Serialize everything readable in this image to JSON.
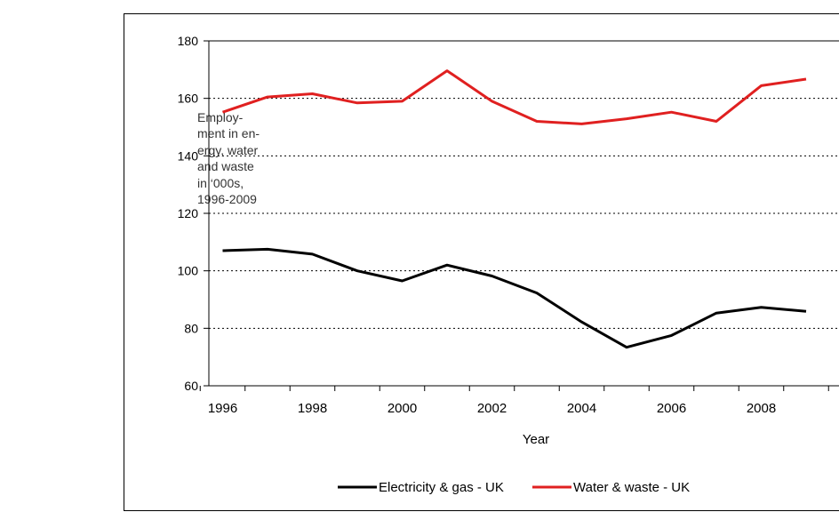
{
  "caption": {
    "lines": [
      "Employ-",
      "ment in en-",
      "ergy, water",
      "and waste",
      "in ‘000s,",
      "1996-2009"
    ]
  },
  "chart_data": {
    "type": "line",
    "title": "",
    "xlabel": "Year",
    "ylabel": "",
    "x": [
      1996,
      1997,
      1998,
      1999,
      2000,
      2001,
      2002,
      2003,
      2004,
      2005,
      2006,
      2007,
      2008,
      2009
    ],
    "xticks": [
      "1996",
      "1998",
      "2000",
      "2002",
      "2004",
      "2006",
      "2008"
    ],
    "ylim": [
      60,
      180
    ],
    "yticks": [
      "60",
      "80",
      "100",
      "120",
      "140",
      "160",
      "180"
    ],
    "grid": "horizontal dotted",
    "legend_position": "bottom",
    "series": [
      {
        "name": "Electricity & gas - UK",
        "color": "#000000",
        "values": [
          107,
          107.5,
          105.8,
          100,
          96.5,
          102,
          98.2,
          92.3,
          82.2,
          73.4,
          77.5,
          85.3,
          87.3,
          85.9
        ]
      },
      {
        "name": "Water & waste - UK",
        "color": "#e02020",
        "values": [
          155.2,
          160.5,
          161.6,
          158.4,
          159,
          169.6,
          159,
          152,
          151.1,
          152.9,
          155.2,
          152,
          164.4,
          166.7
        ]
      }
    ]
  }
}
